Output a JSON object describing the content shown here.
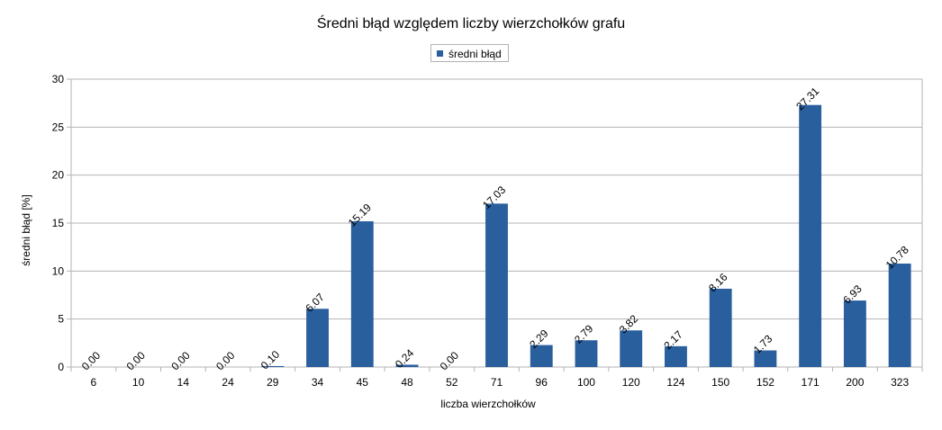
{
  "chart_data": {
    "type": "bar",
    "title": "Średni błąd względem liczby wierzchołków grafu",
    "xlabel": "liczba wierzchołków",
    "ylabel": "średni błąd [%]",
    "ylim": [
      0,
      30
    ],
    "yticks": [
      0,
      5,
      10,
      15,
      20,
      25,
      30
    ],
    "grid": true,
    "legend_position": "top-center",
    "categories": [
      "6",
      "10",
      "14",
      "24",
      "29",
      "34",
      "45",
      "48",
      "52",
      "71",
      "96",
      "100",
      "120",
      "124",
      "150",
      "152",
      "171",
      "200",
      "323"
    ],
    "series": [
      {
        "name": "średni błąd",
        "color": "#2a5f9e",
        "values": [
          0.0,
          0.0,
          0.0,
          0.0,
          0.1,
          6.07,
          15.19,
          0.24,
          0.0,
          17.03,
          2.29,
          2.79,
          3.82,
          2.17,
          8.16,
          1.73,
          27.31,
          6.93,
          10.78
        ],
        "labels": [
          "0.00",
          "0.00",
          "0.00",
          "0.00",
          "0.10",
          "6.07",
          "15.19",
          "0.24",
          "0.00",
          "17.03",
          "2.29",
          "2.79",
          "3.82",
          "2.17",
          "8.16",
          "1.73",
          "27.31",
          "6.93",
          "10.78"
        ]
      }
    ]
  }
}
